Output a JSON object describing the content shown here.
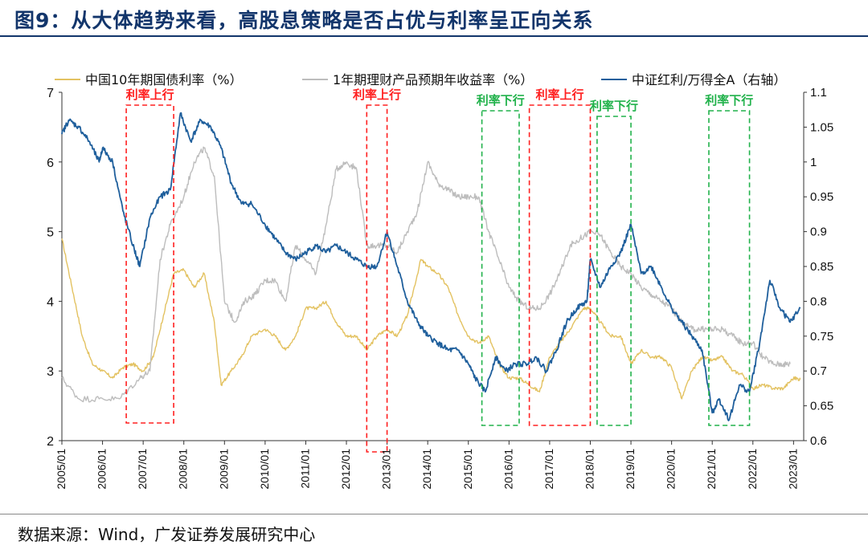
{
  "title": "图9：从大体趋势来看，高股息策略是否占优与利率呈正向关系",
  "source": "数据来源：Wind，广发证券发展研究中心",
  "colors": {
    "title": "#12356b",
    "cgb": "#e3c261",
    "wmp": "#bdbdbd",
    "index": "#1f5f9c",
    "up": "#ff2020",
    "down": "#21b24b"
  },
  "chart_data": {
    "type": "line",
    "x_tick_labels": [
      "2005/01",
      "2006/01",
      "2007/01",
      "2008/01",
      "2009/01",
      "2010/01",
      "2011/01",
      "2012/01",
      "2013/01",
      "2014/01",
      "2015/01",
      "2016/01",
      "2017/01",
      "2018/01",
      "2019/01",
      "2020/01",
      "2021/01",
      "2022/01",
      "2023/01"
    ],
    "y_left": {
      "range": [
        2,
        7
      ],
      "ticks": [
        "2",
        "3",
        "4",
        "5",
        "6",
        "7"
      ]
    },
    "y_right": {
      "range": [
        0.6,
        1.1
      ],
      "ticks": [
        "0.6",
        "0.65",
        "0.7",
        "0.75",
        "0.8",
        "0.85",
        "0.9",
        "0.95",
        "1",
        "1.05",
        "1.1"
      ]
    },
    "legend": {
      "placement": "top"
    },
    "series": [
      {
        "name": "中国10年期国债利率（%）",
        "axis": "left",
        "color": "#e3c261",
        "points": [
          [
            "2005/01",
            4.9
          ],
          [
            "2005/04",
            4.2
          ],
          [
            "2005/07",
            3.5
          ],
          [
            "2005/10",
            3.1
          ],
          [
            "2006/01",
            3.0
          ],
          [
            "2006/04",
            2.9
          ],
          [
            "2006/07",
            3.05
          ],
          [
            "2006/10",
            3.1
          ],
          [
            "2007/01",
            3.0
          ],
          [
            "2007/04",
            3.2
          ],
          [
            "2007/07",
            3.8
          ],
          [
            "2007/10",
            4.4
          ],
          [
            "2008/01",
            4.45
          ],
          [
            "2008/04",
            4.2
          ],
          [
            "2008/07",
            4.4
          ],
          [
            "2008/10",
            3.7
          ],
          [
            "2008/12",
            2.8
          ],
          [
            "2009/03",
            3.0
          ],
          [
            "2009/06",
            3.2
          ],
          [
            "2009/09",
            3.5
          ],
          [
            "2010/01",
            3.6
          ],
          [
            "2010/04",
            3.5
          ],
          [
            "2010/07",
            3.3
          ],
          [
            "2010/10",
            3.5
          ],
          [
            "2011/01",
            3.9
          ],
          [
            "2011/04",
            3.9
          ],
          [
            "2011/07",
            4.0
          ],
          [
            "2011/10",
            3.7
          ],
          [
            "2012/01",
            3.5
          ],
          [
            "2012/04",
            3.5
          ],
          [
            "2012/07",
            3.3
          ],
          [
            "2012/10",
            3.5
          ],
          [
            "2013/01",
            3.6
          ],
          [
            "2013/04",
            3.5
          ],
          [
            "2013/07",
            3.8
          ],
          [
            "2013/11",
            4.6
          ],
          [
            "2014/01",
            4.5
          ],
          [
            "2014/04",
            4.4
          ],
          [
            "2014/07",
            4.2
          ],
          [
            "2014/10",
            3.8
          ],
          [
            "2015/01",
            3.5
          ],
          [
            "2015/04",
            3.4
          ],
          [
            "2015/07",
            3.5
          ],
          [
            "2015/10",
            3.1
          ],
          [
            "2016/01",
            2.9
          ],
          [
            "2016/04",
            2.9
          ],
          [
            "2016/07",
            2.8
          ],
          [
            "2016/10",
            2.7
          ],
          [
            "2017/01",
            3.2
          ],
          [
            "2017/04",
            3.4
          ],
          [
            "2017/07",
            3.6
          ],
          [
            "2017/11",
            3.9
          ],
          [
            "2018/01",
            3.9
          ],
          [
            "2018/04",
            3.7
          ],
          [
            "2018/07",
            3.5
          ],
          [
            "2018/10",
            3.5
          ],
          [
            "2019/01",
            3.1
          ],
          [
            "2019/04",
            3.3
          ],
          [
            "2019/07",
            3.2
          ],
          [
            "2019/10",
            3.2
          ],
          [
            "2020/01",
            3.05
          ],
          [
            "2020/04",
            2.6
          ],
          [
            "2020/07",
            3.0
          ],
          [
            "2020/10",
            3.2
          ],
          [
            "2021/01",
            3.15
          ],
          [
            "2021/04",
            3.2
          ],
          [
            "2021/07",
            3.0
          ],
          [
            "2021/10",
            2.95
          ],
          [
            "2022/01",
            2.75
          ],
          [
            "2022/04",
            2.8
          ],
          [
            "2022/07",
            2.75
          ],
          [
            "2022/10",
            2.75
          ],
          [
            "2023/01",
            2.9
          ],
          [
            "2023/03",
            2.88
          ]
        ]
      },
      {
        "name": "1年期理财产品预期年收益率（%）",
        "axis": "left",
        "color": "#bdbdbd",
        "points": [
          [
            "2005/01",
            2.9
          ],
          [
            "2005/06",
            2.6
          ],
          [
            "2005/12",
            2.6
          ],
          [
            "2006/06",
            2.6
          ],
          [
            "2006/12",
            2.9
          ],
          [
            "2007/03",
            3.0
          ],
          [
            "2007/06",
            4.6
          ],
          [
            "2007/09",
            5.1
          ],
          [
            "2008/01",
            5.5
          ],
          [
            "2008/04",
            6.0
          ],
          [
            "2008/07",
            6.2
          ],
          [
            "2008/10",
            5.8
          ],
          [
            "2009/01",
            4.0
          ],
          [
            "2009/04",
            3.7
          ],
          [
            "2009/07",
            4.0
          ],
          [
            "2009/10",
            4.1
          ],
          [
            "2010/01",
            4.3
          ],
          [
            "2010/04",
            4.3
          ],
          [
            "2010/07",
            4.0
          ],
          [
            "2010/10",
            4.8
          ],
          [
            "2011/01",
            4.6
          ],
          [
            "2011/04",
            4.4
          ],
          [
            "2011/07",
            5.1
          ],
          [
            "2011/10",
            5.9
          ],
          [
            "2012/01",
            6.0
          ],
          [
            "2012/04",
            5.9
          ],
          [
            "2012/07",
            4.8
          ],
          [
            "2012/10",
            4.8
          ],
          [
            "2013/01",
            4.8
          ],
          [
            "2013/04",
            4.7
          ],
          [
            "2013/07",
            5.0
          ],
          [
            "2013/10",
            5.3
          ],
          [
            "2014/01",
            6.0
          ],
          [
            "2014/04",
            5.7
          ],
          [
            "2014/07",
            5.6
          ],
          [
            "2014/10",
            5.5
          ],
          [
            "2015/01",
            5.5
          ],
          [
            "2015/04",
            5.5
          ],
          [
            "2015/07",
            5.0
          ],
          [
            "2015/10",
            4.6
          ],
          [
            "2016/01",
            4.2
          ],
          [
            "2016/04",
            4.0
          ],
          [
            "2016/07",
            3.9
          ],
          [
            "2016/10",
            3.9
          ],
          [
            "2017/01",
            4.1
          ],
          [
            "2017/04",
            4.4
          ],
          [
            "2017/07",
            4.8
          ],
          [
            "2017/10",
            4.9
          ],
          [
            "2018/01",
            5.0
          ],
          [
            "2018/04",
            4.95
          ],
          [
            "2018/07",
            4.7
          ],
          [
            "2018/10",
            4.5
          ],
          [
            "2019/01",
            4.4
          ],
          [
            "2019/04",
            4.2
          ],
          [
            "2019/07",
            4.1
          ],
          [
            "2019/10",
            4.0
          ],
          [
            "2020/01",
            3.9
          ],
          [
            "2020/04",
            3.7
          ],
          [
            "2020/07",
            3.6
          ],
          [
            "2020/10",
            3.6
          ],
          [
            "2021/01",
            3.6
          ],
          [
            "2021/04",
            3.6
          ],
          [
            "2021/07",
            3.5
          ],
          [
            "2021/10",
            3.4
          ],
          [
            "2022/01",
            3.4
          ],
          [
            "2022/04",
            3.2
          ],
          [
            "2022/07",
            3.1
          ],
          [
            "2022/10",
            3.1
          ],
          [
            "2022/12",
            3.1
          ]
        ]
      },
      {
        "name": "中证红利/万得全A（右轴）",
        "axis": "right",
        "color": "#1f5f9c",
        "points": [
          [
            "2005/01",
            1.04
          ],
          [
            "2005/03",
            1.06
          ],
          [
            "2005/06",
            1.05
          ],
          [
            "2005/09",
            1.03
          ],
          [
            "2005/12",
            1.0
          ],
          [
            "2006/01",
            1.02
          ],
          [
            "2006/04",
            1.0
          ],
          [
            "2006/07",
            0.93
          ],
          [
            "2006/10",
            0.88
          ],
          [
            "2006/12",
            0.85
          ],
          [
            "2007/03",
            0.92
          ],
          [
            "2007/06",
            0.95
          ],
          [
            "2007/09",
            0.96
          ],
          [
            "2007/12",
            1.07
          ],
          [
            "2008/03",
            1.03
          ],
          [
            "2008/06",
            1.06
          ],
          [
            "2008/09",
            1.05
          ],
          [
            "2008/12",
            1.02
          ],
          [
            "2009/03",
            0.97
          ],
          [
            "2009/06",
            0.94
          ],
          [
            "2009/09",
            0.94
          ],
          [
            "2010/01",
            0.91
          ],
          [
            "2010/04",
            0.89
          ],
          [
            "2010/07",
            0.87
          ],
          [
            "2010/10",
            0.86
          ],
          [
            "2011/01",
            0.87
          ],
          [
            "2011/04",
            0.88
          ],
          [
            "2011/07",
            0.87
          ],
          [
            "2011/10",
            0.88
          ],
          [
            "2012/01",
            0.87
          ],
          [
            "2012/04",
            0.86
          ],
          [
            "2012/07",
            0.85
          ],
          [
            "2012/10",
            0.85
          ],
          [
            "2013/01",
            0.9
          ],
          [
            "2013/04",
            0.85
          ],
          [
            "2013/07",
            0.8
          ],
          [
            "2013/10",
            0.77
          ],
          [
            "2014/01",
            0.75
          ],
          [
            "2014/04",
            0.74
          ],
          [
            "2014/07",
            0.73
          ],
          [
            "2014/10",
            0.73
          ],
          [
            "2015/01",
            0.71
          ],
          [
            "2015/03",
            0.69
          ],
          [
            "2015/06",
            0.67
          ],
          [
            "2015/09",
            0.72
          ],
          [
            "2015/12",
            0.7
          ],
          [
            "2016/03",
            0.71
          ],
          [
            "2016/06",
            0.71
          ],
          [
            "2016/09",
            0.72
          ],
          [
            "2016/12",
            0.7
          ],
          [
            "2017/03",
            0.73
          ],
          [
            "2017/06",
            0.77
          ],
          [
            "2017/09",
            0.79
          ],
          [
            "2017/12",
            0.8
          ],
          [
            "2018/01",
            0.86
          ],
          [
            "2018/04",
            0.82
          ],
          [
            "2018/07",
            0.85
          ],
          [
            "2018/10",
            0.87
          ],
          [
            "2019/01",
            0.91
          ],
          [
            "2019/04",
            0.84
          ],
          [
            "2019/07",
            0.85
          ],
          [
            "2019/10",
            0.82
          ],
          [
            "2020/01",
            0.79
          ],
          [
            "2020/04",
            0.77
          ],
          [
            "2020/07",
            0.75
          ],
          [
            "2020/10",
            0.73
          ],
          [
            "2021/01",
            0.64
          ],
          [
            "2021/03",
            0.66
          ],
          [
            "2021/06",
            0.63
          ],
          [
            "2021/09",
            0.68
          ],
          [
            "2021/12",
            0.67
          ],
          [
            "2022/03",
            0.74
          ],
          [
            "2022/06",
            0.83
          ],
          [
            "2022/09",
            0.79
          ],
          [
            "2022/12",
            0.77
          ],
          [
            "2023/03",
            0.79
          ]
        ]
      }
    ],
    "annotations": [
      {
        "label": "利率上行",
        "color": "#ff2020",
        "from": "2006/08",
        "to": "2007/10"
      },
      {
        "label": "利率上行",
        "color": "#ff2020",
        "from": "2012/07",
        "to": "2013/01"
      },
      {
        "label": "利率下行",
        "color": "#21b24b",
        "from": "2015/05",
        "to": "2016/04"
      },
      {
        "label": "利率上行",
        "color": "#ff2020",
        "from": "2016/07",
        "to": "2018/01"
      },
      {
        "label": "利率下行",
        "color": "#21b24b",
        "from": "2018/03",
        "to": "2019/01"
      },
      {
        "label": "利率下行",
        "color": "#21b24b",
        "from": "2020/12",
        "to": "2021/12"
      }
    ]
  }
}
